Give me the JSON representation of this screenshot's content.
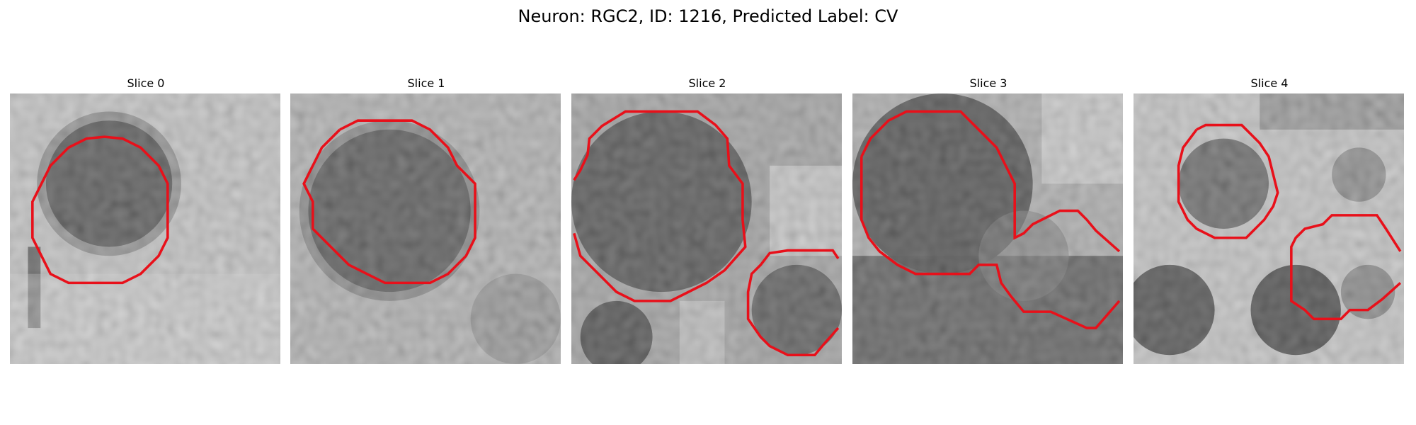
{
  "figure": {
    "title": "Neuron: RGC2, ID: 1216, Predicted Label: CV"
  },
  "slices": [
    {
      "label": "Slice 0"
    },
    {
      "label": "Slice 1"
    },
    {
      "label": "Slice 2"
    },
    {
      "label": "Slice 3"
    },
    {
      "label": "Slice 4"
    }
  ],
  "colors": {
    "contour": "#e8101a",
    "background": "#ffffff"
  }
}
